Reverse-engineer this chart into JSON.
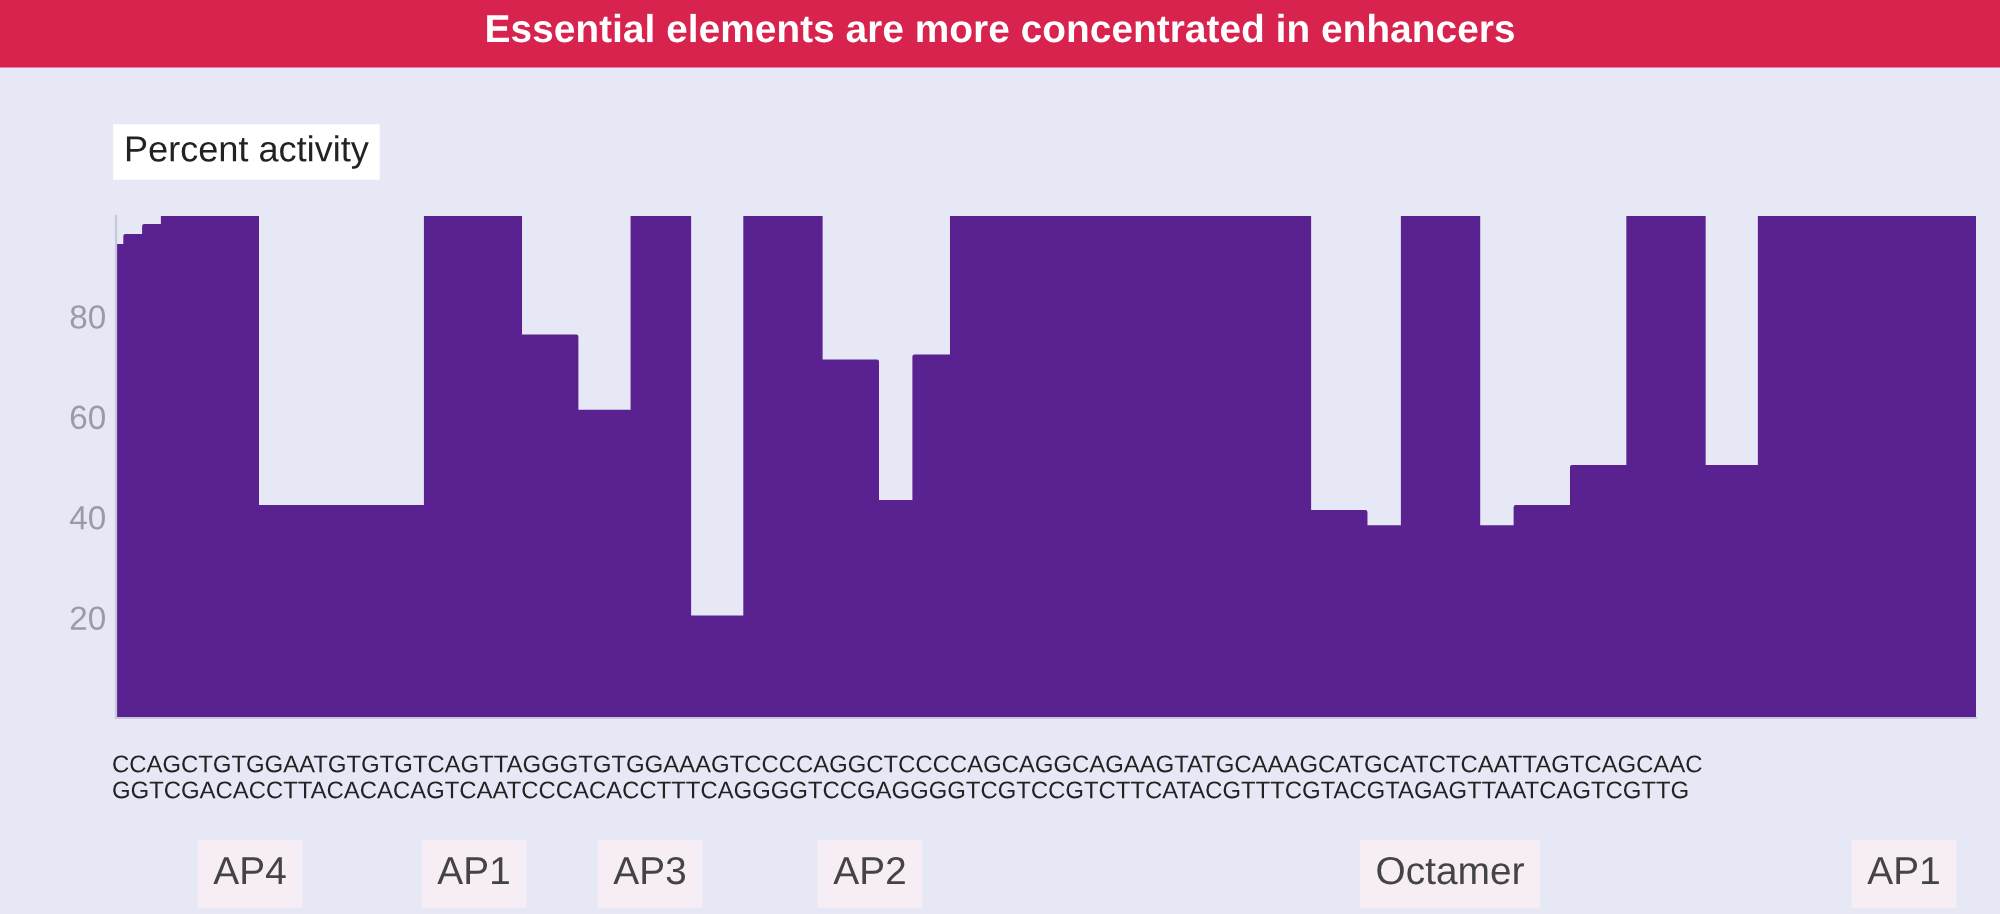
{
  "chart_data": {
    "type": "area",
    "title": "Essential elements are more concentrated in enhancers",
    "ylabel": "Percent activity",
    "categories": [
      null,
      null,
      null,
      null,
      null,
      null,
      null,
      null,
      null,
      null,
      null,
      null,
      null,
      null,
      null,
      null,
      null,
      null,
      null,
      null,
      null,
      null,
      null,
      null,
      null,
      null,
      null,
      null,
      null,
      null,
      null,
      null,
      null,
      null,
      null,
      null,
      null,
      null,
      null,
      null,
      null,
      null,
      null,
      null,
      null,
      null,
      null,
      null,
      null,
      null,
      null,
      null,
      null,
      null,
      null,
      null,
      null,
      null,
      null,
      null,
      null,
      null,
      null,
      null,
      null,
      null,
      null,
      null,
      null,
      null,
      null,
      null,
      null,
      null,
      null,
      null,
      null,
      null,
      null,
      null,
      null,
      null,
      null,
      null,
      null,
      null,
      null,
      null,
      null,
      null,
      null,
      null,
      null,
      null,
      null,
      null,
      null,
      null,
      null,
      null
    ],
    "values": [
      94,
      96,
      98,
      100,
      100,
      100,
      100,
      100,
      42,
      42,
      42,
      42,
      42,
      42,
      42,
      42,
      42,
      100,
      100,
      100,
      100,
      100,
      76,
      76,
      76,
      61,
      61,
      61,
      100,
      100,
      100,
      20,
      20,
      20,
      100,
      100,
      100,
      100,
      71,
      71,
      71,
      43,
      43,
      72,
      72,
      100,
      100,
      100,
      100,
      100,
      100,
      100,
      100,
      100,
      100,
      100,
      100,
      100,
      100,
      100,
      100,
      100,
      100,
      100,
      41,
      41,
      41,
      38,
      38,
      100,
      100,
      100,
      100,
      38,
      38,
      42,
      42,
      42,
      50,
      50,
      50,
      100,
      100,
      100,
      100,
      50,
      50,
      50,
      100,
      100,
      100,
      100,
      100,
      100,
      100,
      100,
      100,
      100,
      100,
      100
    ],
    "color": "#5a2290",
    "ylim": [
      0,
      100
    ],
    "yticks": [
      20,
      40,
      60,
      80
    ],
    "tick_labels": "y",
    "grid": false,
    "annotations": [
      "CCAGCTGTGGAATGTGTGTCAGTTAGGGTGTGGAAAGTCCCCAGGCTCCCCAGCAGGCAGAAGTATGCAAAGCATGCATCTCAATTAGTCAGCAAC",
      "GGTCGACACCTTACACACAGTCAATCCCACACCTTTCAGGGGTCCGAGGGGTCGTCCGTCTTCATACGTTTCGTACGTAGAGTTAATCAGTCGTTG",
      "AP4",
      "AP1",
      "AP3",
      "AP2",
      "Octamer",
      "AP1"
    ]
  }
}
